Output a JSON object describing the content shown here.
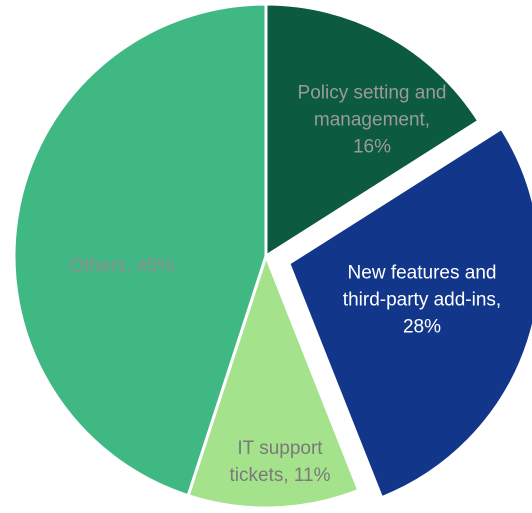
{
  "chart_data": {
    "type": "pie",
    "labels": [
      "Policy setting and management, 16%",
      "New features and third-party add-ins, 28%",
      "IT support tickets, 11%",
      "Others, 45%"
    ],
    "values": [
      16,
      28,
      11,
      45
    ],
    "colors": [
      "#0c5a3f",
      "#12378a",
      "#a4e28b",
      "#40b883"
    ],
    "label_colors": [
      "#9a9a9a",
      "#ffffff",
      "#7a7a7a",
      "#8f8f8f"
    ],
    "exploded": [
      false,
      true,
      false,
      false
    ]
  }
}
